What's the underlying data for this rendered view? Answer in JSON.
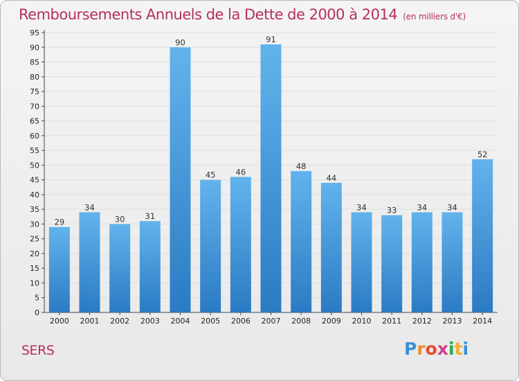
{
  "chart_data": {
    "type": "bar",
    "title": "Remboursements Annuels de la Dette de 2000 à 2014",
    "unit_note": "(en milliers d'€)",
    "categories": [
      "2000",
      "2001",
      "2002",
      "2003",
      "2004",
      "2005",
      "2006",
      "2007",
      "2008",
      "2009",
      "2010",
      "2011",
      "2012",
      "2013",
      "2014"
    ],
    "values": [
      29,
      34,
      30,
      31,
      90,
      45,
      46,
      91,
      48,
      44,
      34,
      33,
      34,
      34,
      52
    ],
    "value_labels": [
      "29",
      "34",
      "30",
      "31",
      "90",
      "45",
      "46",
      "91",
      "48",
      "44",
      "34",
      "33",
      "34",
      "34",
      "52"
    ],
    "yticks": [
      "0",
      "5",
      "10",
      "15",
      "20",
      "25",
      "30",
      "35",
      "40",
      "45",
      "50",
      "55",
      "60",
      "65",
      "70",
      "75",
      "80",
      "85",
      "90",
      "95"
    ],
    "ylim": [
      0,
      95
    ],
    "grid": true,
    "xlabel": "",
    "ylabel": "",
    "colors": {
      "bar_top": "#62b3ec",
      "bar_bottom": "#2a7bc3",
      "grid": "#dedede",
      "title": "#b5305a"
    }
  },
  "footer": {
    "place_name": "SERS",
    "logo_letters": [
      "P",
      "r",
      "o",
      "x",
      "i",
      "t",
      "i"
    ],
    "logo_colors": [
      "#3b8fd6",
      "#f08a2e",
      "#e94b2e",
      "#d93b8c",
      "#2aa84a",
      "#f0b12e",
      "#3b8fd6"
    ]
  }
}
